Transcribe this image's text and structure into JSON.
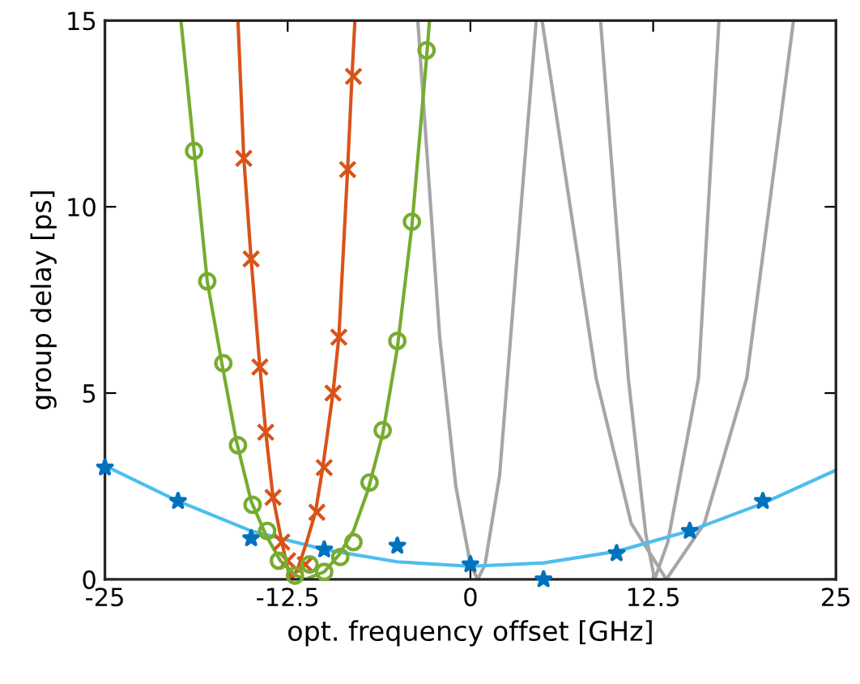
{
  "chart_data": {
    "type": "line",
    "xlabel": "opt. frequency offset [GHz]",
    "ylabel": "group delay [ps]",
    "xlim": [
      -25,
      25
    ],
    "ylim": [
      0,
      15
    ],
    "xticks": [
      -25,
      -12.5,
      0,
      12.5,
      25
    ],
    "yticks": [
      0,
      5,
      10,
      15
    ],
    "grid": false,
    "legend": false,
    "series": [
      {
        "color": "#a6a6a6",
        "x": [
          -3.6,
          -2.1,
          -1,
          0,
          0.5,
          1,
          2,
          3.4,
          4.5
        ],
        "values": [
          15,
          6.5,
          2.5,
          0.4,
          0,
          0.4,
          2.8,
          9.7,
          15
        ]
      },
      {
        "color": "#a6a6a6",
        "x": [
          4.9,
          8.6,
          11,
          13.4,
          16,
          18.9,
          22.1
        ],
        "values": [
          15,
          5.4,
          1.5,
          0,
          1.5,
          5.4,
          15
        ]
      },
      {
        "color": "#a6a6a6",
        "x": [
          8.9,
          10.8,
          12,
          12.6,
          13.5,
          15.6,
          17
        ],
        "values": [
          15,
          5.4,
          1.2,
          0,
          1.0,
          5.4,
          15
        ]
      },
      {
        "color": "#4dbeee",
        "x": [
          -25,
          -20,
          -15,
          -10,
          -5,
          0,
          5,
          10,
          15,
          20,
          25
        ],
        "values": [
          3.05,
          2.1,
          1.3,
          0.8,
          0.47,
          0.35,
          0.44,
          0.75,
          1.3,
          2.04,
          2.93
        ]
      },
      {
        "type": "scatter",
        "marker": "star",
        "color": "#0072bd",
        "x": [
          -25,
          -20,
          -15,
          -10,
          -5,
          0,
          5,
          10,
          15,
          20
        ],
        "values": [
          3.0,
          2.1,
          1.1,
          0.8,
          0.9,
          0.4,
          0.0,
          0.7,
          1.3,
          2.1
        ]
      },
      {
        "color": "#d95319",
        "x": [
          -15.9,
          -15.5,
          -15.0,
          -14.4,
          -14.0,
          -13.5,
          -12.9,
          -12.5,
          -12.2,
          -11.8,
          -11.2,
          -10.6,
          -10.1,
          -9.4,
          -9.0,
          -8.4,
          -8.1,
          -7.9
        ],
        "values": [
          15,
          11.3,
          8.6,
          5.7,
          3.95,
          2.2,
          1.0,
          0.3,
          0,
          0.3,
          1.0,
          1.8,
          3.0,
          5.0,
          6.5,
          11.0,
          13.5,
          15
        ]
      },
      {
        "type": "scatter",
        "marker": "cross",
        "color": "#d95319",
        "x": [
          -15.5,
          -15.0,
          -14.4,
          -14.0,
          -13.5,
          -12.9,
          -12.5,
          -11.3,
          -10.5,
          -10.0,
          -9.4,
          -9.0,
          -8.4,
          -8.0
        ],
        "values": [
          11.3,
          8.6,
          5.7,
          3.95,
          2.2,
          1.0,
          0.5,
          0.4,
          1.8,
          3.0,
          5.0,
          6.5,
          11.0,
          13.5
        ]
      },
      {
        "color": "#77ac30",
        "x": [
          -19.8,
          -18.9,
          -18,
          -17,
          -16,
          -15,
          -14,
          -13,
          -12,
          -11.3,
          -10,
          -9,
          -8,
          -7,
          -6,
          -5,
          -4,
          -3,
          -2.8
        ],
        "values": [
          15,
          11.5,
          8.0,
          5.8,
          3.7,
          2.1,
          1.2,
          0.5,
          0.12,
          0,
          0.2,
          0.65,
          1.3,
          2.4,
          3.9,
          6.2,
          9.5,
          14.0,
          15
        ]
      },
      {
        "type": "scatter",
        "marker": "circle",
        "color": "#77ac30",
        "x": [
          -18.9,
          -18.0,
          -16.9,
          -15.9,
          -14.9,
          -13.9,
          -13.1,
          -12.0,
          -11.0,
          -10.0,
          -8.9,
          -8.0,
          -6.9,
          -6.0,
          -5.0,
          -4.0,
          -3.0
        ],
        "values": [
          11.5,
          8.0,
          5.8,
          3.6,
          2.0,
          1.3,
          0.5,
          0.1,
          0.4,
          0.2,
          0.6,
          1.0,
          2.6,
          4.0,
          6.4,
          9.6,
          14.2
        ]
      }
    ]
  }
}
